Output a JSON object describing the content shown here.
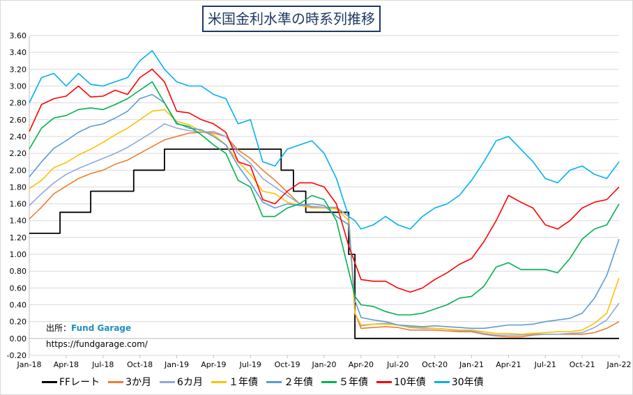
{
  "chart_data": {
    "type": "line",
    "title": "米国金利水準の時系列推移",
    "ylim": [
      -0.2,
      3.6
    ],
    "yticks": [
      "-0.20",
      "0.00",
      "0.20",
      "0.40",
      "0.60",
      "0.80",
      "1.00",
      "1.20",
      "1.40",
      "1.60",
      "1.80",
      "2.00",
      "2.20",
      "2.40",
      "2.60",
      "2.80",
      "3.00",
      "3.20",
      "3.40",
      "3.60"
    ],
    "xlim": [
      0,
      48
    ],
    "xticks": [
      {
        "label": "Jan-18",
        "x": 0
      },
      {
        "label": "Apr-18",
        "x": 3
      },
      {
        "label": "Jul-18",
        "x": 6
      },
      {
        "label": "Oct-18",
        "x": 9
      },
      {
        "label": "Jan-19",
        "x": 12
      },
      {
        "label": "Apr-19",
        "x": 15
      },
      {
        "label": "Jul-19",
        "x": 18
      },
      {
        "label": "Oct-19",
        "x": 21
      },
      {
        "label": "Jan-20",
        "x": 24
      },
      {
        "label": "Apr-20",
        "x": 27
      },
      {
        "label": "Jul-20",
        "x": 30
      },
      {
        "label": "Oct-20",
        "x": 33
      },
      {
        "label": "Jan-21",
        "x": 36
      },
      {
        "label": "Apr-21",
        "x": 39
      },
      {
        "label": "Jul-21",
        "x": 42
      },
      {
        "label": "Oct-21",
        "x": 45
      },
      {
        "label": "Jan-22",
        "x": 48
      }
    ],
    "grid": true,
    "legend_position": "bottom",
    "series": [
      {
        "name": "FFレート",
        "color": "#000000",
        "step": true,
        "x": [
          0,
          2.5,
          5,
          8.5,
          11,
          20.5,
          21.5,
          22.5,
          24,
          25.7,
          26,
          26.5,
          48
        ],
        "y": [
          1.25,
          1.5,
          1.75,
          2.0,
          2.25,
          2.0,
          1.75,
          1.5,
          1.5,
          1.5,
          1.0,
          0.0,
          0.0
        ]
      },
      {
        "name": "3か月",
        "color": "#ed7d31",
        "x": [
          0,
          1,
          2,
          3,
          4,
          5,
          6,
          7,
          8,
          9,
          10,
          11,
          12,
          13,
          14,
          15,
          16,
          17,
          18,
          19,
          20,
          21,
          22,
          23,
          24,
          25,
          26,
          26.5,
          27,
          28,
          29,
          30,
          31,
          32,
          33,
          34,
          35,
          36,
          37,
          38,
          39,
          40,
          41,
          42,
          43,
          44,
          45,
          46,
          47,
          48
        ],
        "y": [
          1.42,
          1.56,
          1.72,
          1.81,
          1.9,
          1.96,
          2.0,
          2.07,
          2.12,
          2.2,
          2.28,
          2.36,
          2.4,
          2.44,
          2.45,
          2.44,
          2.4,
          2.24,
          2.14,
          2.0,
          1.88,
          1.74,
          1.6,
          1.56,
          1.55,
          1.55,
          1.45,
          0.3,
          0.12,
          0.13,
          0.14,
          0.13,
          0.1,
          0.1,
          0.1,
          0.09,
          0.08,
          0.08,
          0.05,
          0.03,
          0.02,
          0.02,
          0.04,
          0.05,
          0.05,
          0.05,
          0.05,
          0.07,
          0.12,
          0.2
        ]
      },
      {
        "name": "6カ月",
        "color": "#8ea9db",
        "x": [
          0,
          1,
          2,
          3,
          4,
          5,
          6,
          7,
          8,
          9,
          10,
          11,
          12,
          13,
          14,
          15,
          16,
          17,
          18,
          19,
          20,
          21,
          22,
          23,
          24,
          25,
          26,
          26.5,
          27,
          28,
          29,
          30,
          31,
          32,
          33,
          34,
          35,
          36,
          37,
          38,
          39,
          40,
          41,
          42,
          43,
          44,
          45,
          46,
          47,
          48
        ],
        "y": [
          1.58,
          1.72,
          1.85,
          1.95,
          2.02,
          2.08,
          2.14,
          2.2,
          2.27,
          2.36,
          2.45,
          2.55,
          2.5,
          2.47,
          2.45,
          2.46,
          2.4,
          2.2,
          2.08,
          1.9,
          1.8,
          1.7,
          1.6,
          1.57,
          1.56,
          1.56,
          1.45,
          0.3,
          0.15,
          0.17,
          0.18,
          0.16,
          0.13,
          0.12,
          0.12,
          0.11,
          0.09,
          0.09,
          0.06,
          0.04,
          0.04,
          0.04,
          0.05,
          0.05,
          0.05,
          0.06,
          0.07,
          0.13,
          0.22,
          0.42
        ]
      },
      {
        "name": "１年債",
        "color": "#ffc000",
        "x": [
          0,
          1,
          2,
          3,
          4,
          5,
          6,
          7,
          8,
          9,
          10,
          11,
          12,
          13,
          14,
          15,
          16,
          17,
          18,
          19,
          20,
          21,
          22,
          23,
          24,
          25,
          26,
          26.5,
          27,
          28,
          29,
          30,
          31,
          32,
          33,
          34,
          35,
          36,
          37,
          38,
          39,
          40,
          41,
          42,
          43,
          44,
          45,
          46,
          47,
          48
        ],
        "y": [
          1.78,
          1.88,
          2.03,
          2.09,
          2.18,
          2.25,
          2.33,
          2.42,
          2.5,
          2.6,
          2.7,
          2.72,
          2.58,
          2.54,
          2.46,
          2.42,
          2.3,
          2.1,
          1.95,
          1.75,
          1.72,
          1.62,
          1.58,
          1.55,
          1.55,
          1.54,
          1.4,
          0.3,
          0.16,
          0.17,
          0.17,
          0.16,
          0.14,
          0.13,
          0.12,
          0.11,
          0.1,
          0.1,
          0.08,
          0.06,
          0.06,
          0.05,
          0.06,
          0.07,
          0.08,
          0.08,
          0.1,
          0.18,
          0.3,
          0.72
        ]
      },
      {
        "name": "２年債",
        "color": "#5b9bd5",
        "x": [
          0,
          1,
          2,
          3,
          4,
          5,
          6,
          7,
          8,
          9,
          10,
          11,
          12,
          13,
          14,
          15,
          16,
          17,
          18,
          19,
          20,
          21,
          22,
          23,
          24,
          25,
          26,
          26.5,
          27,
          28,
          29,
          30,
          31,
          32,
          33,
          34,
          35,
          36,
          37,
          38,
          39,
          40,
          41,
          42,
          43,
          44,
          45,
          46,
          47,
          48
        ],
        "y": [
          1.92,
          2.1,
          2.26,
          2.35,
          2.45,
          2.52,
          2.55,
          2.62,
          2.7,
          2.85,
          2.9,
          2.8,
          2.56,
          2.5,
          2.48,
          2.4,
          2.3,
          2.05,
          1.85,
          1.62,
          1.55,
          1.6,
          1.58,
          1.6,
          1.58,
          1.45,
          1.35,
          0.45,
          0.25,
          0.22,
          0.2,
          0.16,
          0.15,
          0.14,
          0.15,
          0.14,
          0.13,
          0.12,
          0.12,
          0.14,
          0.16,
          0.16,
          0.17,
          0.2,
          0.22,
          0.24,
          0.3,
          0.48,
          0.75,
          1.18
        ]
      },
      {
        "name": "５年債",
        "color": "#00b050",
        "x": [
          0,
          1,
          2,
          3,
          4,
          5,
          6,
          7,
          8,
          9,
          10,
          11,
          12,
          13,
          14,
          15,
          16,
          17,
          18,
          19,
          20,
          21,
          22,
          23,
          24,
          25,
          26,
          26.5,
          27,
          28,
          29,
          30,
          31,
          32,
          33,
          34,
          35,
          36,
          37,
          38,
          39,
          40,
          41,
          42,
          43,
          44,
          45,
          46,
          47,
          48
        ],
        "y": [
          2.25,
          2.5,
          2.62,
          2.65,
          2.72,
          2.74,
          2.72,
          2.78,
          2.85,
          2.95,
          3.05,
          2.8,
          2.55,
          2.52,
          2.42,
          2.3,
          2.2,
          1.88,
          1.8,
          1.45,
          1.45,
          1.55,
          1.6,
          1.7,
          1.65,
          1.4,
          0.8,
          0.5,
          0.4,
          0.38,
          0.32,
          0.28,
          0.28,
          0.3,
          0.35,
          0.4,
          0.48,
          0.5,
          0.62,
          0.85,
          0.9,
          0.82,
          0.82,
          0.82,
          0.78,
          0.95,
          1.18,
          1.3,
          1.35,
          1.6
        ]
      },
      {
        "name": "10年債",
        "color": "#ff0000",
        "x": [
          0,
          1,
          2,
          3,
          4,
          5,
          6,
          7,
          8,
          9,
          10,
          11,
          12,
          13,
          14,
          15,
          16,
          17,
          18,
          19,
          20,
          21,
          22,
          23,
          24,
          25,
          26,
          26.5,
          27,
          28,
          29,
          30,
          31,
          32,
          33,
          34,
          35,
          36,
          37,
          38,
          39,
          40,
          41,
          42,
          43,
          44,
          45,
          46,
          47,
          48
        ],
        "y": [
          2.46,
          2.78,
          2.85,
          2.88,
          3.0,
          2.87,
          2.88,
          2.95,
          2.9,
          3.1,
          3.2,
          3.05,
          2.7,
          2.68,
          2.6,
          2.55,
          2.45,
          2.1,
          2.05,
          1.65,
          1.6,
          1.75,
          1.85,
          1.85,
          1.8,
          1.6,
          1.1,
          0.9,
          0.7,
          0.68,
          0.68,
          0.6,
          0.55,
          0.6,
          0.7,
          0.78,
          0.88,
          0.95,
          1.15,
          1.4,
          1.7,
          1.62,
          1.55,
          1.35,
          1.3,
          1.4,
          1.55,
          1.62,
          1.65,
          1.8
        ]
      },
      {
        "name": "30年債",
        "color": "#00b0f0",
        "x": [
          0,
          1,
          2,
          3,
          4,
          5,
          6,
          7,
          8,
          9,
          10,
          11,
          12,
          13,
          14,
          15,
          16,
          17,
          18,
          19,
          20,
          21,
          22,
          23,
          24,
          25,
          26,
          26.5,
          27,
          28,
          29,
          30,
          31,
          32,
          33,
          34,
          35,
          36,
          37,
          38,
          39,
          40,
          41,
          42,
          43,
          44,
          45,
          46,
          47,
          48
        ],
        "y": [
          2.8,
          3.1,
          3.15,
          3.0,
          3.15,
          3.02,
          3.0,
          3.05,
          3.1,
          3.3,
          3.42,
          3.2,
          3.05,
          3.0,
          3.0,
          2.9,
          2.85,
          2.55,
          2.6,
          2.1,
          2.05,
          2.25,
          2.3,
          2.35,
          2.2,
          1.9,
          1.45,
          1.4,
          1.3,
          1.35,
          1.45,
          1.35,
          1.3,
          1.45,
          1.55,
          1.6,
          1.7,
          1.88,
          2.1,
          2.35,
          2.4,
          2.25,
          2.1,
          1.9,
          1.85,
          2.0,
          2.05,
          1.95,
          1.9,
          2.1
        ]
      }
    ]
  },
  "source": {
    "label": "出所：",
    "name": "Fund Garage",
    "url": "https://fundgarage.com/"
  }
}
